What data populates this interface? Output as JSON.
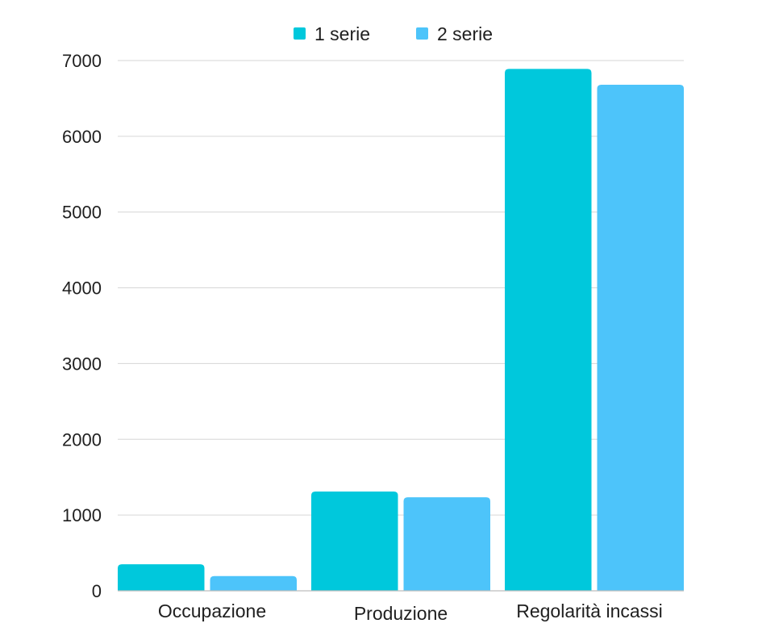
{
  "chart_data": {
    "type": "bar",
    "categories": [
      "Occupazione",
      "Produzione",
      "Regolarità incassi"
    ],
    "series": [
      {
        "name": "1 serie",
        "color": "#00c8dc",
        "values": [
          350,
          1310,
          6890
        ]
      },
      {
        "name": "2 serie",
        "color": "#4dc4fa",
        "values": [
          195,
          1235,
          6680
        ]
      }
    ],
    "ylim": [
      0,
      7000
    ],
    "yticks": [
      0,
      1000,
      2000,
      3000,
      4000,
      5000,
      6000,
      7000
    ],
    "grid": true,
    "legend_position": "top-center"
  }
}
